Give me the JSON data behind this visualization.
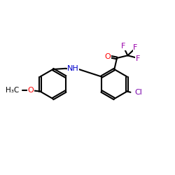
{
  "bg_color": "#ffffff",
  "bond_color": "#000000",
  "bond_width": 1.5,
  "dbo": 0.055,
  "atom_colors": {
    "O": "#ff0000",
    "N": "#0000cc",
    "F": "#9900aa",
    "Cl": "#7700aa",
    "C": "#000000"
  },
  "fs": 7.5
}
